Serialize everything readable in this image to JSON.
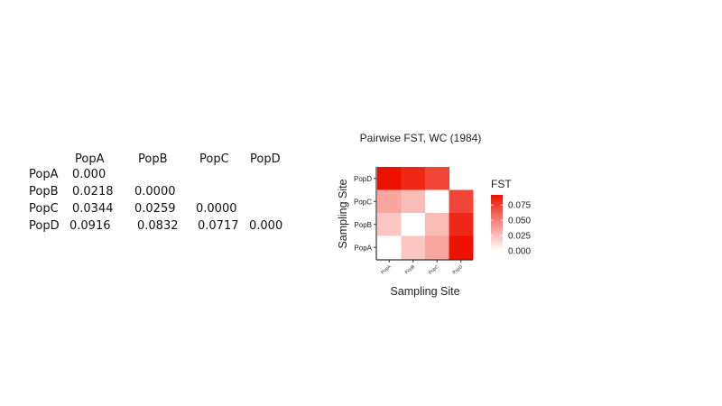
{
  "table": {
    "column_headers": [
      "PopA",
      "PopB",
      "PopC",
      "PopD"
    ],
    "rows": [
      {
        "label": "PopA",
        "cells": [
          "0.000",
          "",
          "",
          ""
        ]
      },
      {
        "label": "PopB",
        "cells": [
          "0.0218",
          "0.0000",
          "",
          ""
        ]
      },
      {
        "label": "PopC",
        "cells": [
          "0.0344",
          "0.0259",
          "0.0000",
          ""
        ]
      },
      {
        "label": "PopD",
        "cells": [
          "0.0916",
          "0.0832",
          "0.0717",
          "0.000"
        ]
      }
    ]
  },
  "chart_data": {
    "type": "heatmap",
    "title": "Pairwise FST, WC (1984)",
    "xlabel": "Sampling Site",
    "ylabel": "Sampling Site",
    "x_categories": [
      "PopA",
      "PopB",
      "PopC",
      "PopD"
    ],
    "y_categories": [
      "PopA",
      "PopB",
      "PopC",
      "PopD"
    ],
    "cells": [
      {
        "x": "PopA",
        "y": "PopD",
        "value": 0.0916
      },
      {
        "x": "PopB",
        "y": "PopD",
        "value": 0.0832
      },
      {
        "x": "PopC",
        "y": "PopD",
        "value": 0.0717
      },
      {
        "x": "PopA",
        "y": "PopC",
        "value": 0.0344
      },
      {
        "x": "PopB",
        "y": "PopC",
        "value": 0.0259
      },
      {
        "x": "PopC",
        "y": "PopC",
        "value": 0.0
      },
      {
        "x": "PopD",
        "y": "PopC",
        "value": 0.0717
      },
      {
        "x": "PopA",
        "y": "PopB",
        "value": 0.0218
      },
      {
        "x": "PopB",
        "y": "PopB",
        "value": 0.0
      },
      {
        "x": "PopC",
        "y": "PopB",
        "value": 0.0259
      },
      {
        "x": "PopD",
        "y": "PopB",
        "value": 0.0832
      },
      {
        "x": "PopA",
        "y": "PopA",
        "value": 0.0
      },
      {
        "x": "PopB",
        "y": "PopA",
        "value": 0.0218
      },
      {
        "x": "PopC",
        "y": "PopA",
        "value": 0.0344
      },
      {
        "x": "PopD",
        "y": "PopA",
        "value": 0.0916
      }
    ],
    "legend": {
      "title": "FST",
      "position": "right",
      "ticks": [
        0.075,
        0.05,
        0.025,
        0.0
      ],
      "tick_labels": [
        "0.075",
        "0.050",
        "0.025",
        "0.000"
      ],
      "range": [
        0,
        0.0916
      ]
    },
    "colors": {
      "low": "#ffffff",
      "high": "#ee1100"
    },
    "grid": false
  }
}
